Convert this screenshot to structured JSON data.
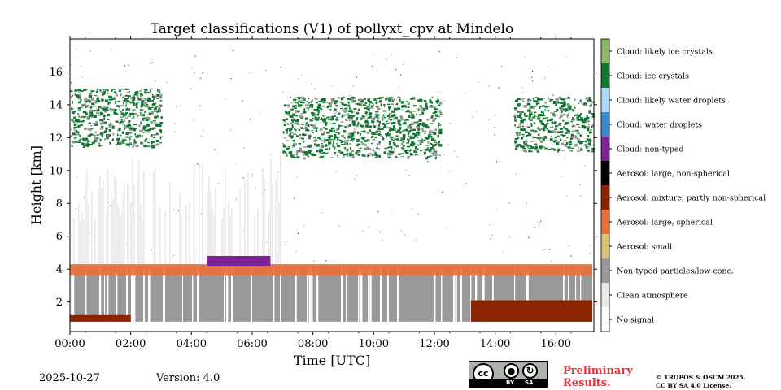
{
  "chart_data": {
    "type": "heatmap",
    "title": "Target classifications (V1) of pollyxt_cpv at Mindelo",
    "xlabel": "Time [UTC]",
    "ylabel": "Height [km]",
    "xlim": [
      0,
      17.25
    ],
    "ylim": [
      0.2,
      18.0
    ],
    "x_ticks": [
      0,
      2,
      4,
      6,
      8,
      10,
      12,
      14,
      16
    ],
    "x_tick_labels": [
      "00:00",
      "02:00",
      "04:00",
      "06:00",
      "08:00",
      "10:00",
      "12:00",
      "14:00",
      "16:00"
    ],
    "y_ticks": [
      2,
      4,
      6,
      8,
      10,
      12,
      14,
      16
    ],
    "y_tick_labels": [
      "2",
      "4",
      "6",
      "8",
      "10",
      "12",
      "14",
      "16"
    ],
    "legend": [
      {
        "label": "Cloud: likely ice crystals",
        "color": "#8db769"
      },
      {
        "label": "Cloud: ice crystals",
        "color": "#11772f"
      },
      {
        "label": "Cloud: likely water droplets",
        "color": "#acd8f6"
      },
      {
        "label": "Cloud: water droplets",
        "color": "#3c8acb"
      },
      {
        "label": "Cloud: non-typed",
        "color": "#7c2491"
      },
      {
        "label": "Aerosol: large, non-spherical",
        "color": "#000000"
      },
      {
        "label": "Aerosol: mixture, partly non-spherical",
        "color": "#8b2500"
      },
      {
        "label": "Aerosol: large, spherical",
        "color": "#e8703b"
      },
      {
        "label": "Aerosol: small",
        "color": "#d8c27a"
      },
      {
        "label": "Non-typed particles/low conc.",
        "color": "#999999"
      },
      {
        "label": "Clean atmosphere",
        "color": "#e8e8e8"
      },
      {
        "label": "No signal",
        "color": "#ffffff"
      }
    ],
    "features": [
      {
        "class": "Non-typed particles/low conc.",
        "t_start": 0.0,
        "t_end": 17.2,
        "z_bottom": 0.8,
        "z_top": 4.2
      },
      {
        "class": "Clean atmosphere",
        "t_start": 0.0,
        "t_end": 7.0,
        "z_bottom": 4.2,
        "z_top": 11.0
      },
      {
        "class": "Aerosol: mixture, partly non-spherical",
        "t_start": 0.0,
        "t_end": 2.0,
        "z_bottom": 0.8,
        "z_top": 1.2
      },
      {
        "class": "Aerosol: mixture, partly non-spherical",
        "t_start": 13.2,
        "t_end": 17.2,
        "z_bottom": 0.8,
        "z_top": 2.1
      },
      {
        "class": "Aerosol: large, spherical",
        "t_start": 0.0,
        "t_end": 17.2,
        "z_bottom": 3.6,
        "z_top": 4.3
      },
      {
        "class": "Cloud: non-typed",
        "t_start": 4.5,
        "t_end": 6.6,
        "z_bottom": 4.2,
        "z_top": 4.8
      },
      {
        "class": "Cloud: ice crystals",
        "t_start": 0.0,
        "t_end": 3.0,
        "z_bottom": 11.5,
        "z_top": 15.0
      },
      {
        "class": "Cloud: ice crystals",
        "t_start": 7.0,
        "t_end": 12.2,
        "z_bottom": 10.8,
        "z_top": 14.5
      },
      {
        "class": "Cloud: ice crystals",
        "t_start": 14.6,
        "t_end": 17.2,
        "z_bottom": 11.2,
        "z_top": 14.5
      }
    ]
  },
  "footer": {
    "date": "2025-10-27",
    "version": "Version: 4.0",
    "preliminary_line1": "Preliminary",
    "preliminary_line2": "Results.",
    "copyright_line1": "© TROPOS & OSCM 2025.",
    "copyright_line2": "CC BY SA 4.0 License.",
    "cc_badge": {
      "cc": "cc",
      "by": "BY",
      "sa": "SA"
    }
  }
}
